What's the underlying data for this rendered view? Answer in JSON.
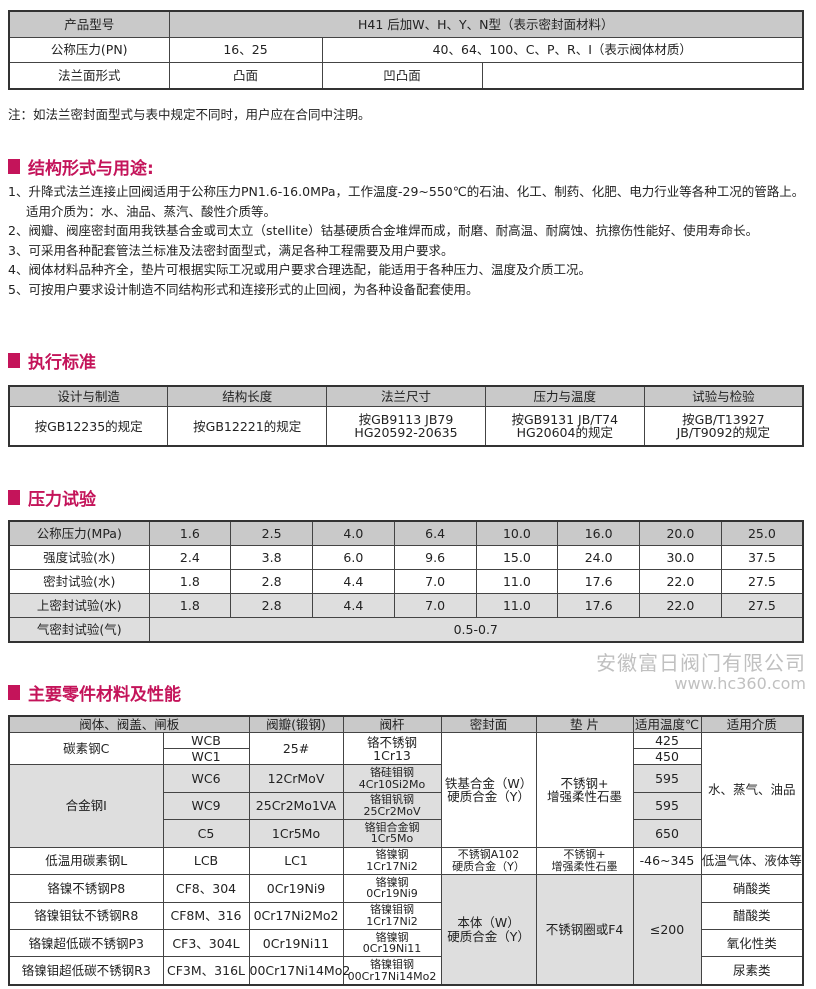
{
  "accent_color": "#c4145a",
  "model_table": {
    "rows": [
      [
        {
          "t": "产品型号"
        },
        {
          "t": "H41 后加W、H、Y、N型（表示密封面材料）",
          "cs": 3
        }
      ],
      [
        {
          "t": "公称压力(PN)"
        },
        {
          "t": "16、25"
        },
        {
          "t": "40、64、100、C、P、R、I（表示阀体材质）",
          "cs": 2
        }
      ],
      [
        {
          "t": "法兰面形式"
        },
        {
          "t": "凸面"
        },
        {
          "t": "凹凸面"
        },
        {
          "t": ""
        }
      ]
    ]
  },
  "note": "注：如法兰密封面型式与表中规定不同时，用户应在合同中注明。",
  "sections": {
    "structure": "结构形式与用途:",
    "standards": "执行标准",
    "pressure": "压力试验",
    "materials": "主要零件材料及性能"
  },
  "structure_items": [
    "1、升降式法兰连接止回阀适用于公称压力PN1.6-16.0MPa，工作温度-29~550℃的石油、化工、制药、化肥、电力行业等各种工况的管路上。适用介质为：水、油品、蒸汽、酸性介质等。",
    "2、阀瓣、阀座密封面用我铁基合金或司太立（stellite）钴基硬质合金堆焊而成，耐磨、耐高温、耐腐蚀、抗擦伤性能好、使用寿命长。",
    "3、可采用各种配套管法兰标准及法密封面型式，满足各种工程需要及用户要求。",
    "4、阀体材料品种齐全，垫片可根据实际工况或用户要求合理选配，能适用于各种压力、温度及介质工况。",
    "5、可按用户要求设计制造不同结构形式和连接形式的止回阀，为各种设备配套使用。"
  ],
  "standards_table": {
    "rows": [
      [
        {
          "t": "设计与制造"
        },
        {
          "t": "结构长度"
        },
        {
          "t": "法兰尺寸"
        },
        {
          "t": "压力与温度"
        },
        {
          "t": "试验与检验"
        }
      ],
      [
        {
          "t": "按GB12235的规定"
        },
        {
          "t": "按GB12221的规定"
        },
        {
          "t": "按GB9113 JB79\nHG20592-20635"
        },
        {
          "t": "按GB9131 JB/T74\nHG20604的规定"
        },
        {
          "t": "按GB/T13927\nJB/T9092的规定"
        }
      ]
    ]
  },
  "pressure_table": {
    "rows": [
      [
        {
          "t": "公称压力(MPa)"
        },
        {
          "t": "1.6"
        },
        {
          "t": "2.5"
        },
        {
          "t": "4.0"
        },
        {
          "t": "6.4"
        },
        {
          "t": "10.0"
        },
        {
          "t": "16.0"
        },
        {
          "t": "20.0"
        },
        {
          "t": "25.0"
        }
      ],
      [
        {
          "t": "强度试验(水)"
        },
        {
          "t": "2.4"
        },
        {
          "t": "3.8"
        },
        {
          "t": "6.0"
        },
        {
          "t": "9.6"
        },
        {
          "t": "15.0"
        },
        {
          "t": "24.0"
        },
        {
          "t": "30.0"
        },
        {
          "t": "37.5"
        }
      ],
      [
        {
          "t": "密封试验(水)"
        },
        {
          "t": "1.8"
        },
        {
          "t": "2.8"
        },
        {
          "t": "4.4"
        },
        {
          "t": "7.0"
        },
        {
          "t": "11.0"
        },
        {
          "t": "17.6"
        },
        {
          "t": "22.0"
        },
        {
          "t": "27.5"
        }
      ],
      [
        {
          "t": "上密封试验(水)"
        },
        {
          "t": "1.8"
        },
        {
          "t": "2.8"
        },
        {
          "t": "4.4"
        },
        {
          "t": "7.0"
        },
        {
          "t": "11.0"
        },
        {
          "t": "17.6"
        },
        {
          "t": "22.0"
        },
        {
          "t": "27.5"
        }
      ],
      [
        {
          "t": "气密封试验(气)"
        },
        {
          "t": "0.5-0.7",
          "cs": 8
        }
      ]
    ]
  },
  "materials_table": {
    "rows": [
      [
        {
          "t": "阀体、阀盖、闸板",
          "cs": 2
        },
        {
          "t": "阀瓣(锻钢)"
        },
        {
          "t": "阀杆"
        },
        {
          "t": "密封面"
        },
        {
          "t": "垫  片"
        },
        {
          "t": "适用温度℃"
        },
        {
          "t": "适用介质"
        }
      ],
      [
        {
          "t": "碳素钢C",
          "rs": 2
        },
        {
          "t": "WCB"
        },
        {
          "t": "25#",
          "rs": 2
        },
        {
          "t": "铬不锈钢\n1Cr13",
          "rs": 2
        },
        {
          "t": "铁基合金（W）\n硬质合金（Y）",
          "rs": 5
        },
        {
          "t": "不锈钢+\n增强柔性石墨",
          "rs": 5
        },
        {
          "t": "425"
        },
        {
          "t": "水、蒸气、油品",
          "rs": 5
        }
      ],
      [
        {
          "t": "WC1"
        },
        {
          "t": "450"
        }
      ],
      [
        {
          "t": "合金钢I",
          "rs": 3
        },
        {
          "t": "WC6"
        },
        {
          "t": "12CrMoV"
        },
        {
          "t": "铬硅钼钢\n4Cr10Si2Mo",
          "s": 1
        },
        {
          "t": "595"
        }
      ],
      [
        {
          "t": "WC9"
        },
        {
          "t": "25Cr2Mo1VA"
        },
        {
          "t": "铬钼钒钢\n25Cr2MoV",
          "s": 1
        },
        {
          "t": "595"
        }
      ],
      [
        {
          "t": "C5"
        },
        {
          "t": "1Cr5Mo"
        },
        {
          "t": "铬钼合金钢\n1Cr5Mo",
          "s": 1
        },
        {
          "t": "650"
        }
      ],
      [
        {
          "t": "低温用碳素钢L"
        },
        {
          "t": "LCB"
        },
        {
          "t": "LC1"
        },
        {
          "t": "铬镍钢\n1Cr17Ni2",
          "s": 1
        },
        {
          "t": "不锈钢A102\n硬质合金（Y）",
          "s": 1
        },
        {
          "t": "不锈钢+\n增强柔性石墨",
          "s": 1
        },
        {
          "t": "-46~345"
        },
        {
          "t": "低温气体、液体等"
        }
      ],
      [
        {
          "t": "铬镍不锈钢P8"
        },
        {
          "t": "CF8、304"
        },
        {
          "t": "0Cr19Ni9"
        },
        {
          "t": "铬镍钢\n0Cr19Ni9",
          "s": 1
        },
        {
          "t": "本体（W）\n硬质合金（Y）",
          "rs": 4
        },
        {
          "t": "不锈钢圈或F4",
          "rs": 4
        },
        {
          "t": "≤200",
          "rs": 4
        },
        {
          "t": "硝酸类"
        }
      ],
      [
        {
          "t": "铬镍钼钛不锈钢R8"
        },
        {
          "t": "CF8M、316"
        },
        {
          "t": "0Cr17Ni2Mo2"
        },
        {
          "t": "铬镍钼钢\n1Cr17Ni2",
          "s": 1
        },
        {
          "t": "醋酸类"
        }
      ],
      [
        {
          "t": "铬镍超低碳不锈钢P3"
        },
        {
          "t": "CF3、304L"
        },
        {
          "t": "0Cr19Ni11"
        },
        {
          "t": "铬镍钢\n0Cr19Ni11",
          "s": 1
        },
        {
          "t": "氧化性类"
        }
      ],
      [
        {
          "t": "铬镍钼超低碳不锈钢R3"
        },
        {
          "t": "CF3M、316L"
        },
        {
          "t": "00Cr17Ni14Mo2"
        },
        {
          "t": "铬镍钼钢\n00Cr17Ni14Mo2",
          "s": 1
        },
        {
          "t": "尿素类"
        }
      ]
    ]
  },
  "watermark": {
    "company": "安徽富日阀门有限公司",
    "site": "www.hc360.com"
  }
}
